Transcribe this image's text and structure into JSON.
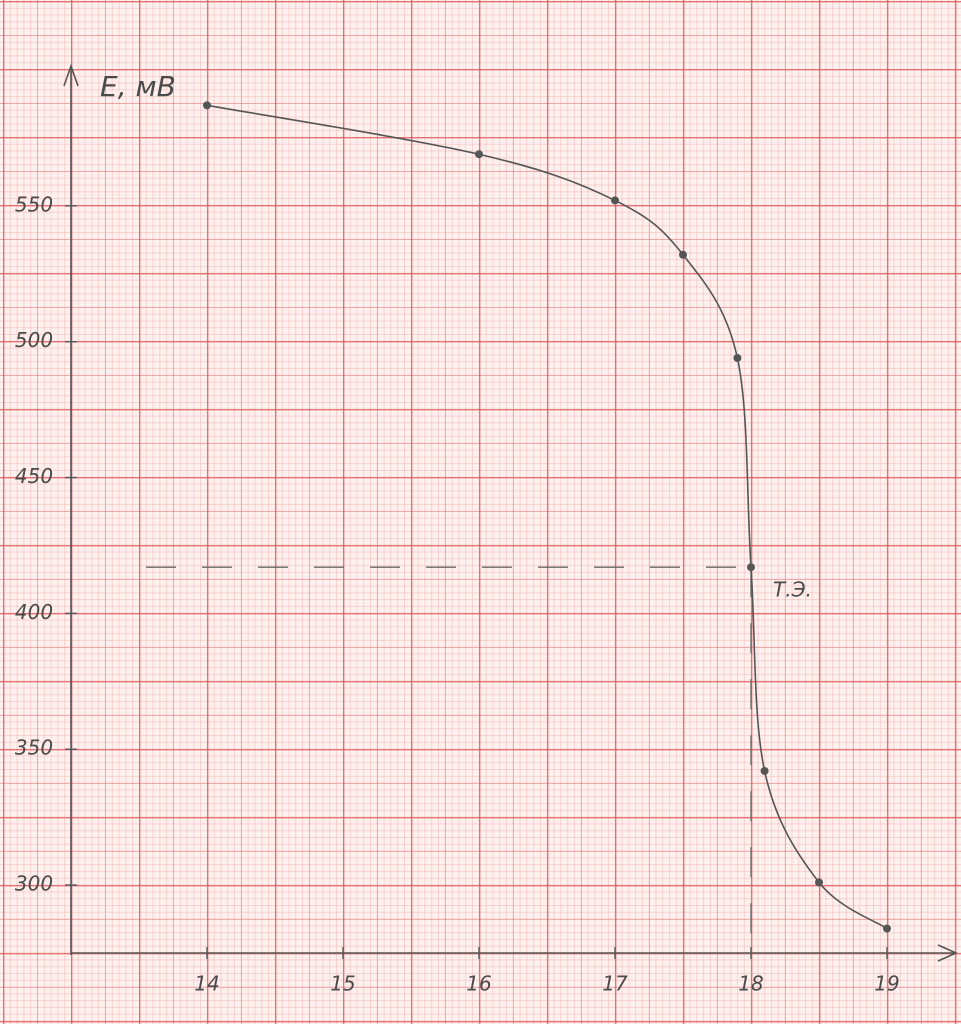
{
  "chart_data": {
    "type": "line",
    "y_label": "E, мВ",
    "x": [
      14,
      16,
      17,
      17.5,
      17.9,
      18,
      18.1,
      18.5,
      19
    ],
    "series": [
      {
        "color": "#555555",
        "values": [
          587,
          569,
          552,
          532,
          494,
          417,
          342,
          301,
          284
        ]
      }
    ],
    "xlim": [
      13,
      19.5
    ],
    "ylim": [
      275,
      600
    ],
    "xticks": [
      14,
      15,
      16,
      17,
      18,
      19
    ],
    "yticks": [
      300,
      350,
      400,
      450,
      500,
      550
    ],
    "equivalence_point": {
      "x": 18,
      "y": 417,
      "label": "Т.Э."
    }
  }
}
